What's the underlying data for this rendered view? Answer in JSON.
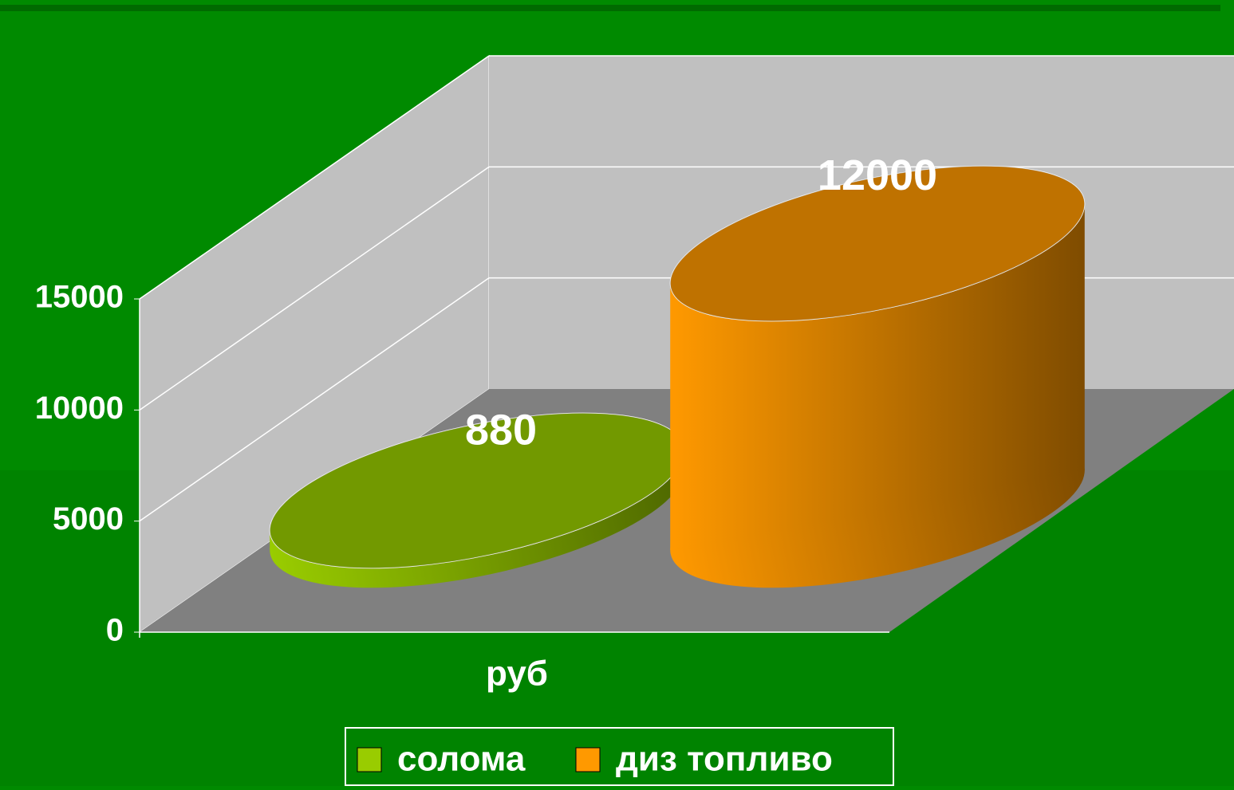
{
  "chart_data": {
    "type": "bar",
    "categories": [
      "руб"
    ],
    "series": [
      {
        "name": "солома",
        "color": "#99cc00",
        "values": [
          880
        ]
      },
      {
        "name": "диз топливо",
        "color": "#ff9900",
        "values": [
          12000
        ]
      }
    ],
    "ylim": [
      0,
      15000
    ],
    "yticks": [
      0,
      5000,
      10000,
      15000
    ],
    "grid": true,
    "legend": "bottom"
  }
}
